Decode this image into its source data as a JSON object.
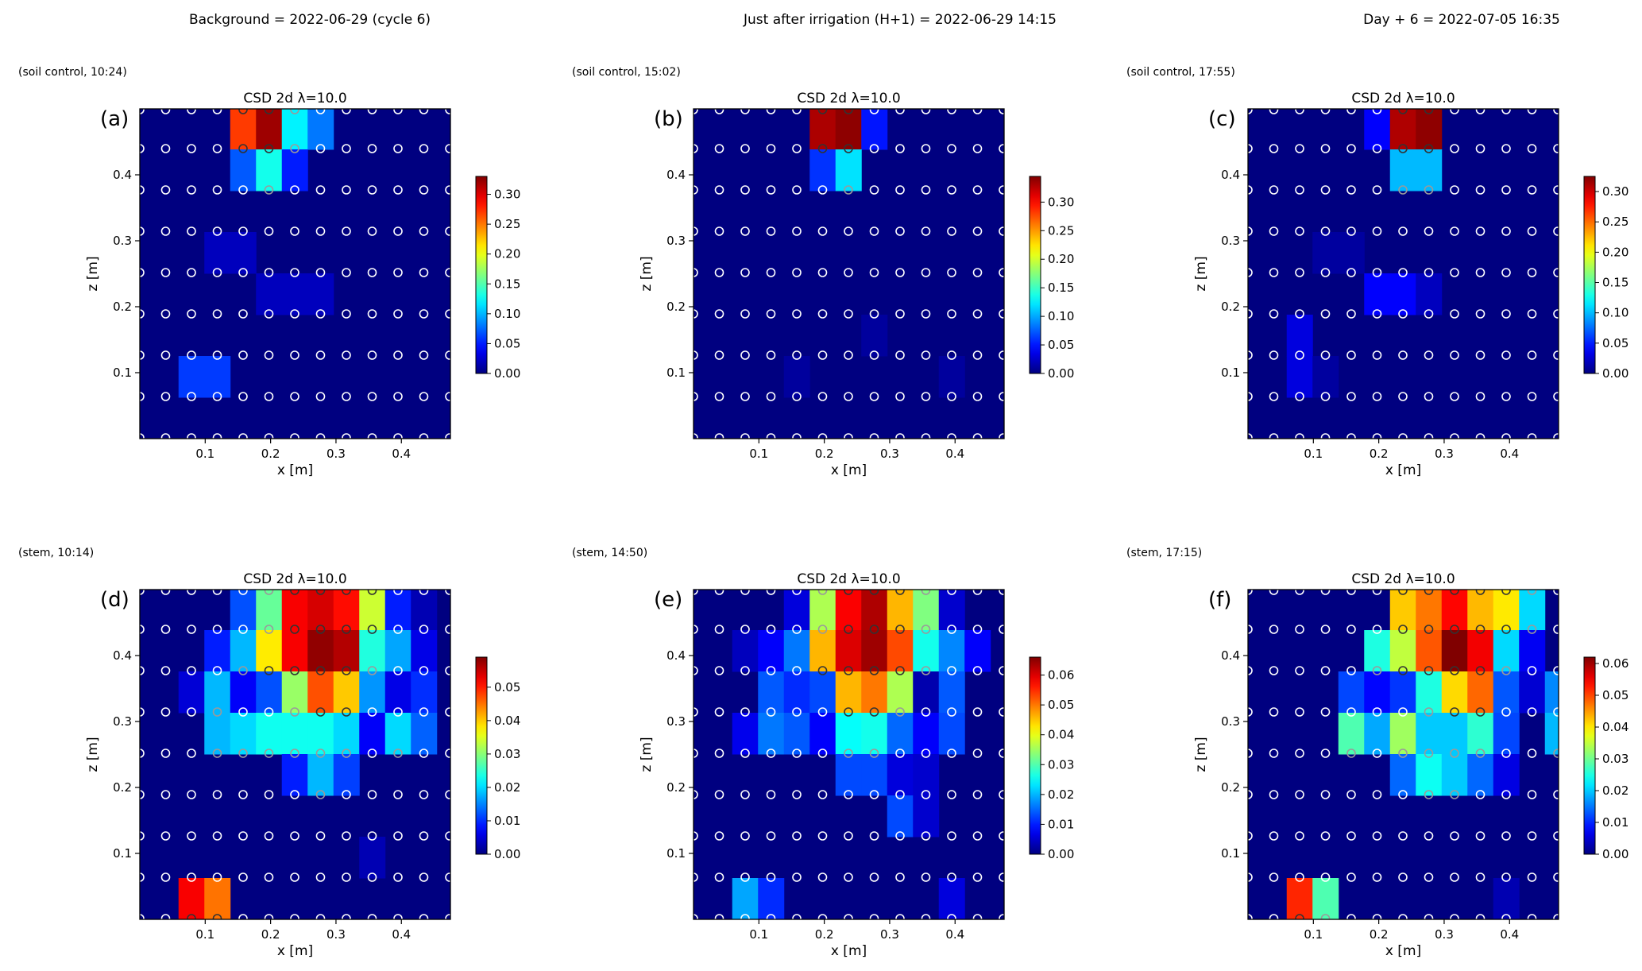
{
  "column_titles": [
    "Background = 2022-06-29  (cycle 6)",
    "Just after irrigation (H+1) = 2022-06-29 14:15",
    "Day + 6 = 2022-07-05 16:35"
  ],
  "chart_data": [
    {
      "panel": "(a)",
      "header": "(soil control, 10:24)",
      "title": "CSD 2d  λ=10.0",
      "type": "heatmap",
      "xlabel": "x [m]",
      "ylabel": "z [m]",
      "xlim": [
        0.0,
        0.475
      ],
      "zlim": [
        0.0,
        0.5
      ],
      "xticks": [
        "0.1",
        "0.2",
        "0.3",
        "0.4"
      ],
      "zticks": [
        "0.1",
        "0.2",
        "0.3",
        "0.4"
      ],
      "colorbar": {
        "min": 0.0,
        "max": 0.33,
        "ticks": [
          "0.00",
          "0.05",
          "0.10",
          "0.15",
          "0.20",
          "0.25",
          "0.30"
        ]
      },
      "cells": [
        [
          0,
          4,
          0.27
        ],
        [
          0,
          5,
          0.32
        ],
        [
          0,
          6,
          0.12
        ],
        [
          0,
          7,
          0.08
        ],
        [
          1,
          4,
          0.07
        ],
        [
          1,
          5,
          0.13
        ],
        [
          1,
          6,
          0.05
        ],
        [
          3,
          3,
          0.02
        ],
        [
          3,
          4,
          0.02
        ],
        [
          4,
          5,
          0.02
        ],
        [
          4,
          6,
          0.02
        ],
        [
          4,
          7,
          0.02
        ],
        [
          6,
          2,
          0.06
        ],
        [
          6,
          3,
          0.06
        ]
      ]
    },
    {
      "panel": "(b)",
      "header": "(soil control, 15:02)",
      "title": "CSD 2d  λ=10.0",
      "type": "heatmap",
      "xlabel": "x [m]",
      "ylabel": "z [m]",
      "xlim": [
        0.0,
        0.475
      ],
      "zlim": [
        0.0,
        0.5
      ],
      "xticks": [
        "0.1",
        "0.2",
        "0.3",
        "0.4"
      ],
      "zticks": [
        "0.1",
        "0.2",
        "0.3",
        "0.4"
      ],
      "colorbar": {
        "min": 0.0,
        "max": 0.345,
        "ticks": [
          "0.00",
          "0.05",
          "0.10",
          "0.15",
          "0.20",
          "0.25",
          "0.30"
        ]
      },
      "cells": [
        [
          0,
          5,
          0.33
        ],
        [
          0,
          6,
          0.34
        ],
        [
          0,
          7,
          0.05
        ],
        [
          1,
          5,
          0.06
        ],
        [
          1,
          6,
          0.12
        ],
        [
          5,
          7,
          0.01
        ],
        [
          6,
          4,
          0.01
        ],
        [
          6,
          10,
          0.01
        ]
      ]
    },
    {
      "panel": "(c)",
      "header": "(soil control, 17:55)",
      "title": "CSD 2d  λ=10.0",
      "type": "heatmap",
      "xlabel": "x [m]",
      "ylabel": "z [m]",
      "xlim": [
        0.0,
        0.475
      ],
      "zlim": [
        0.0,
        0.5
      ],
      "xticks": [
        "0.1",
        "0.2",
        "0.3",
        "0.4"
      ],
      "zticks": [
        "0.1",
        "0.2",
        "0.3",
        "0.4"
      ],
      "colorbar": {
        "min": 0.0,
        "max": 0.325,
        "ticks": [
          "0.00",
          "0.05",
          "0.10",
          "0.15",
          "0.20",
          "0.25",
          "0.30"
        ]
      },
      "cells": [
        [
          0,
          5,
          0.04
        ],
        [
          0,
          6,
          0.31
        ],
        [
          0,
          7,
          0.32
        ],
        [
          1,
          6,
          0.1
        ],
        [
          1,
          7,
          0.1
        ],
        [
          3,
          3,
          0.01
        ],
        [
          3,
          4,
          0.01
        ],
        [
          4,
          5,
          0.04
        ],
        [
          4,
          6,
          0.04
        ],
        [
          4,
          7,
          0.02
        ],
        [
          5,
          2,
          0.03
        ],
        [
          6,
          2,
          0.03
        ],
        [
          6,
          3,
          0.01
        ]
      ]
    },
    {
      "panel": "(d)",
      "header": "(stem, 10:14)",
      "title": "CSD 2d  λ=10.0",
      "type": "heatmap",
      "xlabel": "x [m]",
      "ylabel": "z [m]",
      "xlim": [
        0.0,
        0.475
      ],
      "zlim": [
        0.0,
        0.5
      ],
      "xticks": [
        "0.1",
        "0.2",
        "0.3",
        "0.4"
      ],
      "zticks": [
        "0.1",
        "0.2",
        "0.3",
        "0.4"
      ],
      "colorbar": {
        "min": 0.0,
        "max": 0.059,
        "ticks": [
          "0.00",
          "0.01",
          "0.02",
          "0.03",
          "0.04",
          "0.05"
        ]
      },
      "cells": [
        [
          0,
          4,
          0.012
        ],
        [
          0,
          5,
          0.028
        ],
        [
          0,
          6,
          0.052
        ],
        [
          0,
          7,
          0.054
        ],
        [
          0,
          8,
          0.051
        ],
        [
          0,
          9,
          0.034
        ],
        [
          0,
          10,
          0.009
        ],
        [
          0,
          11,
          0.003
        ],
        [
          1,
          3,
          0.009
        ],
        [
          1,
          4,
          0.018
        ],
        [
          1,
          5,
          0.038
        ],
        [
          1,
          6,
          0.052
        ],
        [
          1,
          7,
          0.058
        ],
        [
          1,
          8,
          0.056
        ],
        [
          1,
          9,
          0.024
        ],
        [
          1,
          10,
          0.017
        ],
        [
          1,
          11,
          0.006
        ],
        [
          2,
          2,
          0.005
        ],
        [
          2,
          3,
          0.018
        ],
        [
          2,
          4,
          0.007
        ],
        [
          2,
          5,
          0.012
        ],
        [
          2,
          6,
          0.031
        ],
        [
          2,
          7,
          0.047
        ],
        [
          2,
          8,
          0.04
        ],
        [
          2,
          9,
          0.016
        ],
        [
          2,
          10,
          0.006
        ],
        [
          2,
          11,
          0.01
        ],
        [
          3,
          3,
          0.018
        ],
        [
          3,
          4,
          0.02
        ],
        [
          3,
          5,
          0.023
        ],
        [
          3,
          6,
          0.023
        ],
        [
          3,
          7,
          0.023
        ],
        [
          3,
          8,
          0.02
        ],
        [
          3,
          9,
          0.007
        ],
        [
          3,
          10,
          0.02
        ],
        [
          3,
          11,
          0.013
        ],
        [
          4,
          6,
          0.009
        ],
        [
          4,
          7,
          0.018
        ],
        [
          4,
          8,
          0.011
        ],
        [
          6,
          9,
          0.003
        ],
        [
          7,
          2,
          0.052
        ],
        [
          7,
          3,
          0.045
        ]
      ]
    },
    {
      "panel": "(e)",
      "header": "(stem, 14:50)",
      "title": "CSD 2d  λ=10.0",
      "type": "heatmap",
      "xlabel": "x [m]",
      "ylabel": "z [m]",
      "xlim": [
        0.0,
        0.475
      ],
      "zlim": [
        0.0,
        0.5
      ],
      "xticks": [
        "0.1",
        "0.2",
        "0.3",
        "0.4"
      ],
      "zticks": [
        "0.1",
        "0.2",
        "0.3",
        "0.4"
      ],
      "colorbar": {
        "min": 0.0,
        "max": 0.066,
        "ticks": [
          "0.00",
          "0.01",
          "0.02",
          "0.03",
          "0.04",
          "0.05",
          "0.06"
        ]
      },
      "cells": [
        [
          0,
          4,
          0.006
        ],
        [
          0,
          5,
          0.036
        ],
        [
          0,
          6,
          0.058
        ],
        [
          0,
          7,
          0.063
        ],
        [
          0,
          8,
          0.046
        ],
        [
          0,
          9,
          0.033
        ],
        [
          0,
          10,
          0.005
        ],
        [
          1,
          2,
          0.004
        ],
        [
          1,
          3,
          0.008
        ],
        [
          1,
          4,
          0.016
        ],
        [
          1,
          5,
          0.046
        ],
        [
          1,
          6,
          0.06
        ],
        [
          1,
          7,
          0.064
        ],
        [
          1,
          8,
          0.053
        ],
        [
          1,
          9,
          0.026
        ],
        [
          1,
          10,
          0.017
        ],
        [
          1,
          11,
          0.008
        ],
        [
          2,
          3,
          0.014
        ],
        [
          2,
          4,
          0.011
        ],
        [
          2,
          5,
          0.013
        ],
        [
          2,
          6,
          0.046
        ],
        [
          2,
          7,
          0.05
        ],
        [
          2,
          8,
          0.036
        ],
        [
          2,
          9,
          0.003
        ],
        [
          2,
          10,
          0.014
        ],
        [
          3,
          2,
          0.007
        ],
        [
          3,
          3,
          0.016
        ],
        [
          3,
          4,
          0.014
        ],
        [
          3,
          5,
          0.008
        ],
        [
          3,
          6,
          0.025
        ],
        [
          3,
          7,
          0.026
        ],
        [
          3,
          8,
          0.015
        ],
        [
          3,
          9,
          0.008
        ],
        [
          3,
          10,
          0.013
        ],
        [
          4,
          6,
          0.013
        ],
        [
          4,
          7,
          0.013
        ],
        [
          4,
          8,
          0.006
        ],
        [
          4,
          9,
          0.005
        ],
        [
          5,
          8,
          0.013
        ],
        [
          5,
          9,
          0.005
        ],
        [
          7,
          2,
          0.019
        ],
        [
          7,
          3,
          0.011
        ],
        [
          7,
          10,
          0.006
        ],
        [
          8,
          3,
          0.005
        ],
        [
          8,
          4,
          0.014
        ]
      ]
    },
    {
      "panel": "(f)",
      "header": "(stem, 17:15)",
      "title": "CSD 2d  λ=10.0",
      "type": "heatmap",
      "xlabel": "x [m]",
      "ylabel": "z [m]",
      "xlim": [
        0.0,
        0.475
      ],
      "zlim": [
        0.0,
        0.5
      ],
      "xticks": [
        "0.1",
        "0.2",
        "0.3",
        "0.4"
      ],
      "zticks": [
        "0.1",
        "0.2",
        "0.3",
        "0.4"
      ],
      "colorbar": {
        "min": 0.0,
        "max": 0.062,
        "ticks": [
          "0.00",
          "0.01",
          "0.02",
          "0.03",
          "0.04",
          "0.05",
          "0.06"
        ]
      },
      "cells": [
        [
          0,
          6,
          0.042
        ],
        [
          0,
          7,
          0.047
        ],
        [
          0,
          8,
          0.054
        ],
        [
          0,
          9,
          0.043
        ],
        [
          0,
          10,
          0.04
        ],
        [
          0,
          11,
          0.021
        ],
        [
          1,
          5,
          0.025
        ],
        [
          1,
          6,
          0.035
        ],
        [
          1,
          7,
          0.049
        ],
        [
          1,
          8,
          0.062
        ],
        [
          1,
          9,
          0.055
        ],
        [
          1,
          10,
          0.021
        ],
        [
          1,
          11,
          0.007
        ],
        [
          2,
          4,
          0.012
        ],
        [
          2,
          5,
          0.008
        ],
        [
          2,
          6,
          0.011
        ],
        [
          2,
          7,
          0.025
        ],
        [
          2,
          8,
          0.041
        ],
        [
          2,
          9,
          0.048
        ],
        [
          2,
          10,
          0.013
        ],
        [
          2,
          11,
          0.005
        ],
        [
          2,
          12,
          0.016
        ],
        [
          3,
          4,
          0.028
        ],
        [
          3,
          5,
          0.018
        ],
        [
          3,
          6,
          0.033
        ],
        [
          3,
          7,
          0.02
        ],
        [
          3,
          8,
          0.02
        ],
        [
          3,
          9,
          0.026
        ],
        [
          3,
          10,
          0.012
        ],
        [
          3,
          12,
          0.019
        ],
        [
          4,
          6,
          0.014
        ],
        [
          4,
          7,
          0.024
        ],
        [
          4,
          8,
          0.02
        ],
        [
          4,
          9,
          0.014
        ],
        [
          4,
          10,
          0.006
        ],
        [
          7,
          2,
          0.052
        ],
        [
          7,
          3,
          0.028
        ],
        [
          7,
          10,
          0.003
        ]
      ]
    }
  ]
}
